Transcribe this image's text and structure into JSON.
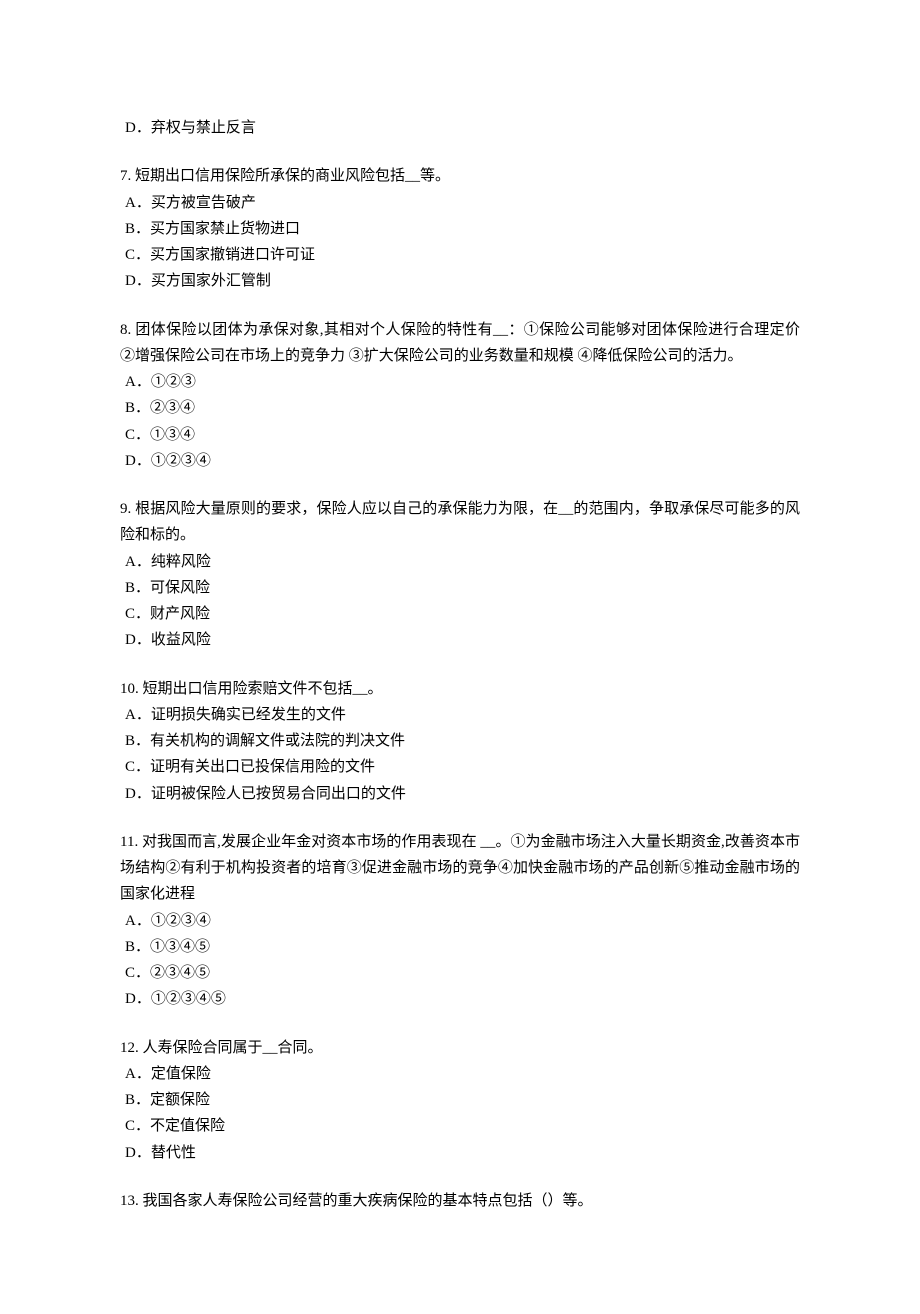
{
  "q6": {
    "optD": "D．弃权与禁止反言"
  },
  "q7": {
    "text": "7. 短期出口信用保险所承保的商业风险包括__等。",
    "optA": "A．买方被宣告破产",
    "optB": "B．买方国家禁止货物进口",
    "optC": "C．买方国家撤销进口许可证",
    "optD": "D．买方国家外汇管制"
  },
  "q8": {
    "text": "8. 团体保险以团体为承保对象,其相对个人保险的特性有__：①保险公司能够对团体保险进行合理定价 ②增强保险公司在市场上的竞争力 ③扩大保险公司的业务数量和规模 ④降低保险公司的活力。",
    "optA": "A．①②③",
    "optB": "B．②③④",
    "optC": "C．①③④",
    "optD": "D．①②③④"
  },
  "q9": {
    "text": "9. 根据风险大量原则的要求，保险人应以自己的承保能力为限，在__的范围内，争取承保尽可能多的风险和标的。",
    "optA": "A．纯粹风险",
    "optB": "B．可保风险",
    "optC": "C．财产风险",
    "optD": "D．收益风险"
  },
  "q10": {
    "text": "10. 短期出口信用险索赔文件不包括__。",
    "optA": "A．证明损失确实已经发生的文件",
    "optB": "B．有关机构的调解文件或法院的判决文件",
    "optC": "C．证明有关出口已投保信用险的文件",
    "optD": "D．证明被保险人已按贸易合同出口的文件"
  },
  "q11": {
    "text": "11. 对我国而言,发展企业年金对资本市场的作用表现在 __。①为金融市场注入大量长期资金,改善资本市场结构②有利于机构投资者的培育③促进金融市场的竞争④加快金融市场的产品创新⑤推动金融市场的国家化进程",
    "optA": "A．①②③④",
    "optB": "B．①③④⑤",
    "optC": "C．②③④⑤",
    "optD": "D．①②③④⑤"
  },
  "q12": {
    "text": "12. 人寿保险合同属于__合同。",
    "optA": "A．定值保险",
    "optB": "B．定额保险",
    "optC": "C．不定值保险",
    "optD": "D．替代性"
  },
  "q13": {
    "text": "13. 我国各家人寿保险公司经营的重大疾病保险的基本特点包括（）等。"
  }
}
